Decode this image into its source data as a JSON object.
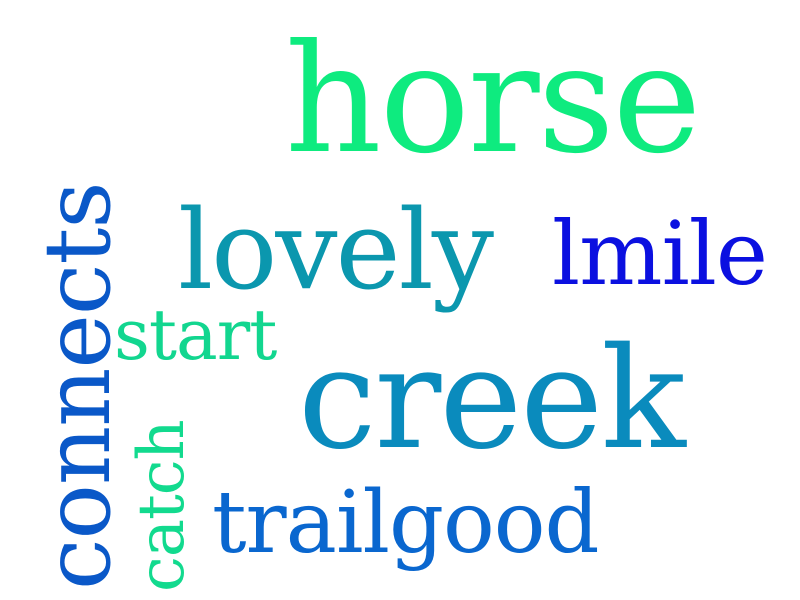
{
  "words": {
    "horse": {
      "text": "horse",
      "color": "#0EEB7F"
    },
    "lovely": {
      "text": "lovely",
      "color": "#0B97AE"
    },
    "lmile": {
      "text": "lmile",
      "color": "#0B10E0"
    },
    "start": {
      "text": "start",
      "color": "#12D68F"
    },
    "creek": {
      "text": "creek",
      "color": "#0A8BBD"
    },
    "trailgood": {
      "text": "trailgood",
      "color": "#0A67CF"
    },
    "connects": {
      "text": "connects",
      "color": "#0A58C8"
    },
    "catch": {
      "text": "catch",
      "color": "#12DA8E"
    }
  }
}
